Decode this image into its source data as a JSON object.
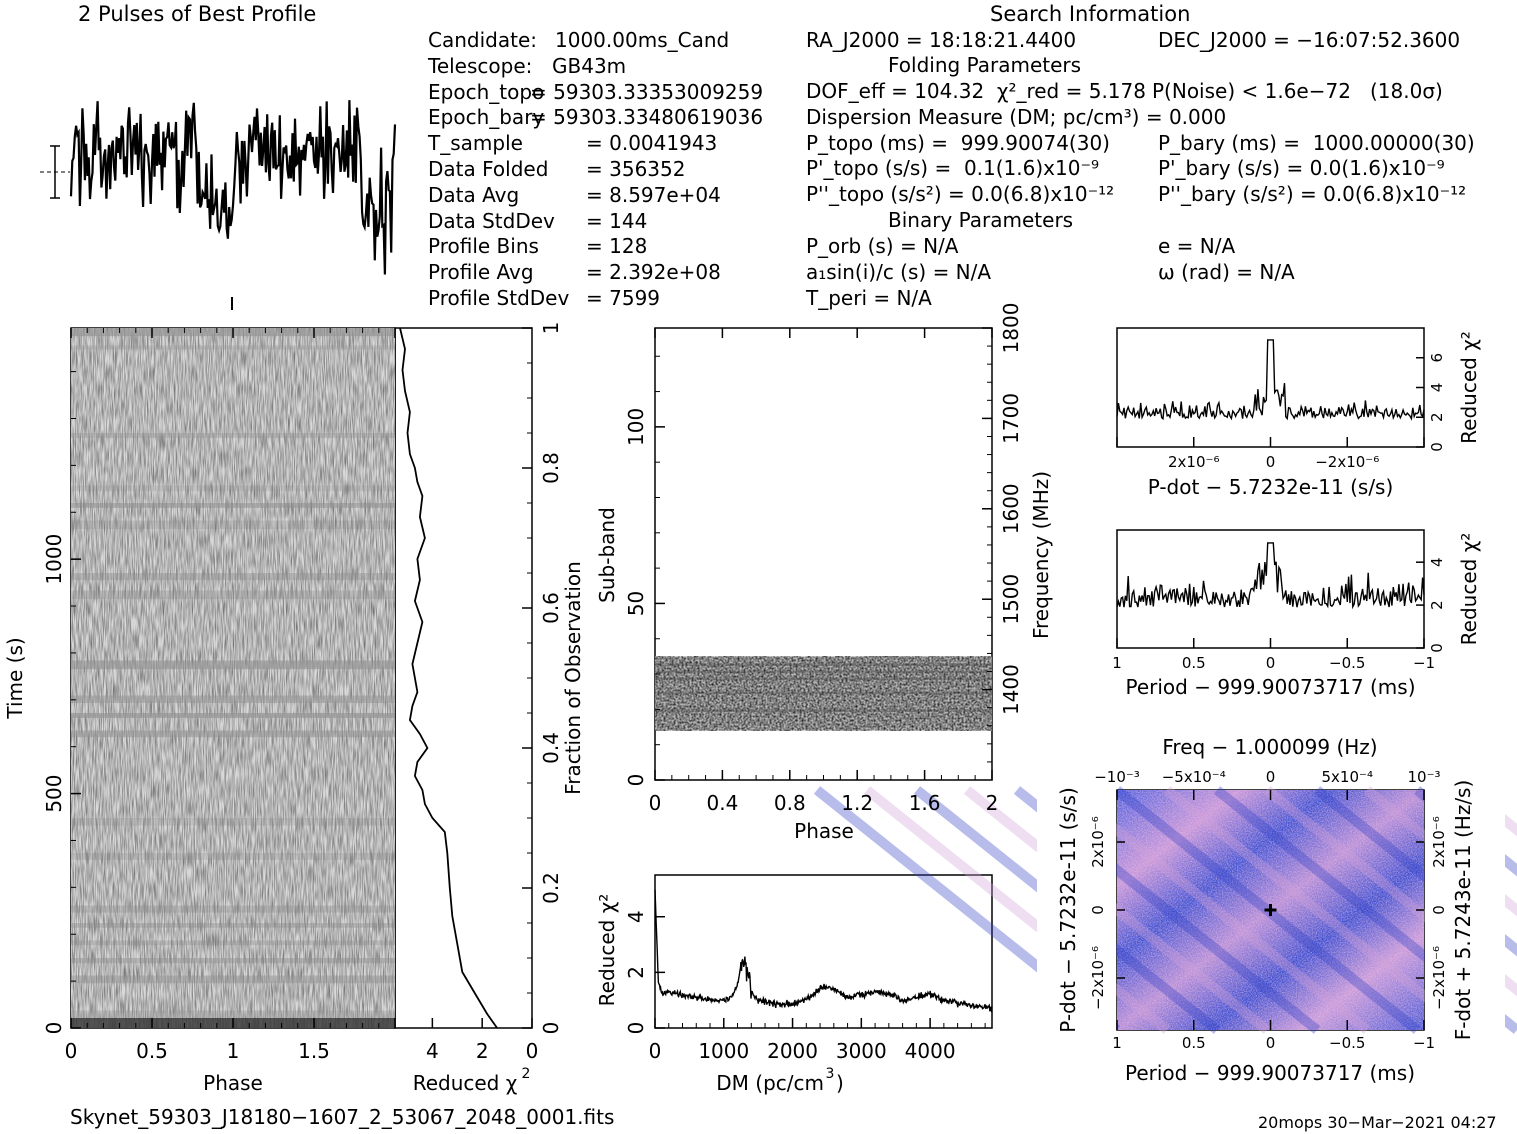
{
  "header": {
    "left_title": "2 Pulses of Best Profile",
    "right_title": "Search Information"
  },
  "info_left": [
    [
      "Candidate:",
      "1000.00ms_Cand"
    ],
    [
      "Telescope:",
      "GB43m"
    ],
    [
      "Epoch_topo",
      "= 59303.33353009259"
    ],
    [
      "Epoch_bary",
      "= 59303.33480619036"
    ],
    [
      "T_sample",
      "= 0.0041943"
    ],
    [
      "Data Folded",
      "= 356352"
    ],
    [
      "Data Avg",
      "= 8.597e+04"
    ],
    [
      "Data StdDev",
      "= 144"
    ],
    [
      "Profile Bins",
      "= 128"
    ],
    [
      "Profile Avg",
      "= 2.392e+08"
    ],
    [
      "Profile StdDev",
      "= 7599"
    ]
  ],
  "info_right": {
    "ra": "RA_J2000 = 18:18:21.4400",
    "dec": "DEC_J2000 = −16:07:52.3600",
    "folding_header": "Folding Parameters",
    "dof": "DOF_eff = 104.32  χ²_red = 5.178",
    "pnoise": "P(Noise) < 1.6e−72   (18.0σ)",
    "dm": "Dispersion Measure (DM; pc/cm³) = 0.000",
    "ptopo": "P_topo (ms) =  999.90074(30)",
    "pbary": "P_bary (ms) =  1000.00000(30)",
    "pdtopo": "P'_topo (s/s) =  0.1(1.6)x10⁻⁹",
    "pdbary": "P'_bary (s/s) = 0.0(1.6)x10⁻⁹",
    "pddtopo": "P''_topo (s/s²) = 0.0(6.8)x10⁻¹²",
    "pddbary": "P''_bary (s/s²) = 0.0(6.8)x10⁻¹²",
    "binary_header": "Binary Parameters",
    "porb": "P_orb (s) = N/A",
    "ecc": "e = N/A",
    "a1": "a₁sin(i)/c (s) = N/A",
    "omega": "ω (rad) = N/A",
    "tperi": "T_peri = N/A"
  },
  "footer": {
    "filename": "Skynet_59303_J18180−1607_2_53067_2048_0001.fits",
    "stamp": "20mops 30−Mar−2021 04:27"
  },
  "colors": {
    "ink": "#000000",
    "pdot_map_blue": "#3a4fd8",
    "pdot_map_pink": "#d6a0d6"
  },
  "chart_data": [
    {
      "type": "line",
      "name": "profile",
      "title": "2 Pulses of Best Profile",
      "bins": 128,
      "pulses": 2
    },
    {
      "type": "heatmap",
      "name": "time-phase",
      "xlabel": "Phase",
      "ylabel": "Time (s)",
      "xlim": [
        0,
        2
      ],
      "ylim": [
        0,
        1493
      ],
      "x_ticks": [
        "0",
        "0.5",
        "1",
        "1.5"
      ],
      "y_ticks": [
        "0",
        "500",
        "1000"
      ]
    },
    {
      "type": "line",
      "name": "time-chi2",
      "xlabel": "Reduced χ²",
      "ylabel": "Fraction of Observation",
      "xlim": [
        5.5,
        0
      ],
      "ylim": [
        0,
        1
      ],
      "x_ticks": [
        "4",
        "2",
        "0"
      ],
      "y_ticks": [
        "0",
        "0.2",
        "0.4",
        "0.6",
        "0.8",
        "1"
      ],
      "fraction": [
        0,
        0.02,
        0.05,
        0.08,
        0.12,
        0.16,
        0.2,
        0.25,
        0.28,
        0.3,
        0.32,
        0.34,
        0.36,
        0.38,
        0.4,
        0.42,
        0.44,
        0.46,
        0.48,
        0.5,
        0.52,
        0.55,
        0.58,
        0.61,
        0.64,
        0.67,
        0.7,
        0.73,
        0.76,
        0.78,
        0.8,
        0.82,
        0.85,
        0.88,
        0.91,
        0.94,
        0.97,
        1.0
      ],
      "chi2": [
        1.4,
        1.8,
        2.3,
        2.8,
        3.0,
        3.2,
        3.3,
        3.4,
        3.5,
        4.0,
        4.3,
        4.4,
        4.7,
        4.6,
        4.2,
        4.5,
        4.9,
        4.8,
        4.6,
        4.7,
        4.8,
        4.6,
        4.4,
        4.7,
        4.5,
        4.6,
        4.3,
        4.5,
        4.4,
        4.6,
        4.7,
        4.9,
        5.0,
        4.9,
        5.1,
        5.2,
        5.1,
        5.3
      ]
    },
    {
      "type": "heatmap",
      "name": "subband-phase",
      "xlabel": "Phase",
      "ylabel": "Sub-band",
      "y2label": "Frequency (MHz)",
      "xlim": [
        0,
        2
      ],
      "ylim": [
        0,
        128
      ],
      "y2lim": [
        1300,
        1800
      ],
      "x_ticks": [
        "0",
        "0.4",
        "0.8",
        "1.2",
        "1.6",
        "2"
      ],
      "y_ticks": [
        "0",
        "50",
        "100"
      ],
      "y2_ticks": [
        "1400",
        "1500",
        "1600",
        "1700",
        "1800"
      ],
      "signal_subbands": [
        14,
        35
      ]
    },
    {
      "type": "line",
      "name": "dm-chi2",
      "xlabel": "DM (pc/cm³)",
      "ylabel": "Reduced χ²",
      "xlim": [
        0,
        4900
      ],
      "ylim": [
        0,
        5.5
      ],
      "x_ticks": [
        "0",
        "1000",
        "2000",
        "3000",
        "4000"
      ],
      "y_ticks": [
        "0",
        "2",
        "4"
      ],
      "x": [
        0,
        50,
        100,
        200,
        400,
        600,
        800,
        1000,
        1100,
        1200,
        1250,
        1300,
        1350,
        1400,
        1500,
        1700,
        1900,
        2100,
        2300,
        2450,
        2600,
        2800,
        3000,
        3200,
        3400,
        3600,
        3800,
        4000,
        4200,
        4400,
        4600,
        4800,
        4900
      ],
      "y": [
        4.9,
        1.6,
        1.2,
        1.3,
        1.2,
        1.1,
        1.0,
        1.0,
        1.1,
        1.5,
        2.3,
        2.4,
        1.8,
        1.3,
        1.0,
        0.9,
        0.85,
        0.9,
        1.2,
        1.5,
        1.4,
        1.1,
        1.2,
        1.3,
        1.2,
        1.0,
        1.1,
        1.2,
        1.0,
        0.9,
        0.8,
        0.75,
        0.7
      ]
    },
    {
      "type": "line",
      "name": "pdot-chi2",
      "xlabel": "P-dot − 5.7232e-11 (s/s)",
      "ylabel": "Reduced χ²",
      "xlim": [
        3.5,
        -3.5
      ],
      "ylim": [
        0,
        8
      ],
      "x_ticks": [
        "2x10⁻⁶",
        "0",
        "−2x10⁻⁶"
      ],
      "y_ticks": [
        "0",
        "2",
        "4",
        "6"
      ]
    },
    {
      "type": "line",
      "name": "period-chi2",
      "xlabel": "Period − 999.90073717 (ms)",
      "ylabel": "Reduced χ²",
      "xlim": [
        1,
        -1
      ],
      "ylim": [
        0,
        5.5
      ],
      "x_ticks": [
        "1",
        "0.5",
        "0",
        "−0.5",
        "−1"
      ],
      "y_ticks": [
        "0",
        "2",
        "4"
      ]
    },
    {
      "type": "heatmap",
      "name": "period-pdot",
      "title": "Freq − 1.000099 (Hz)",
      "xlabel": "Period − 999.90073717 (ms)",
      "ylabel": "P-dot − 5.7232e-11 (s/s)",
      "y2label": "F-dot + 5.7243e-11 (Hz/s)",
      "x_ticks": [
        "1",
        "0.5",
        "0",
        "−0.5",
        "−1"
      ],
      "x2_ticks": [
        "−10⁻³",
        "−5x10⁻⁴",
        "0",
        "5x10⁻⁴",
        "10⁻³"
      ],
      "y_ticks": [
        "2x10⁻⁶",
        "0",
        "−2x10⁻⁶"
      ],
      "y2_ticks": [
        "−2x10⁻⁶",
        "0",
        "2x10⁻⁶"
      ]
    }
  ]
}
